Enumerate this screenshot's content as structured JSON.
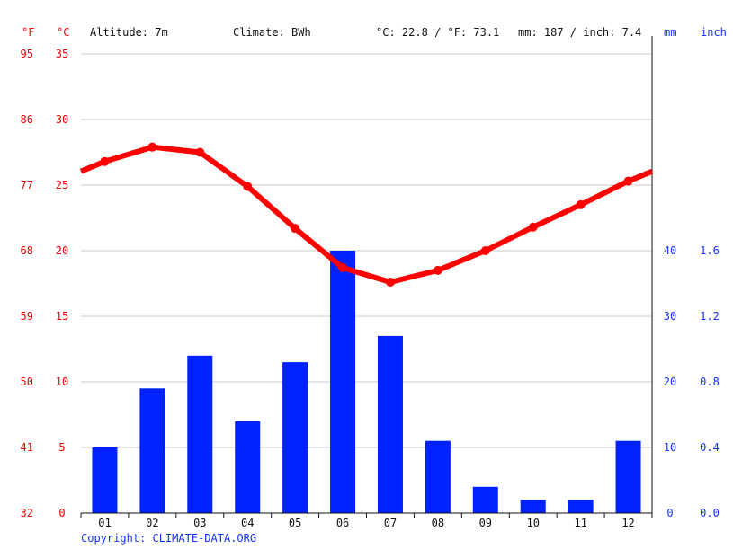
{
  "header": {
    "f_unit": "°F",
    "c_unit": "°C",
    "altitude": "Altitude: 7m",
    "climate": "Climate: BWh",
    "temp_avg": "°C: 22.8 / °F: 73.1",
    "precip_avg": "mm: 187 / inch: 7.4",
    "mm_unit": "mm",
    "inch_unit": "inch"
  },
  "footer": {
    "copyright": "Copyright: CLIMATE-DATA.ORG"
  },
  "colors": {
    "temperature": "#ff0000",
    "precipitation": "#0022ff",
    "grid": "#c8c8c8"
  },
  "chart_data": {
    "type": "bar+line",
    "categories": [
      "01",
      "02",
      "03",
      "04",
      "05",
      "06",
      "07",
      "08",
      "09",
      "10",
      "11",
      "12"
    ],
    "series": [
      {
        "type": "bar",
        "axis": "right",
        "unit": "mm",
        "values": [
          10,
          19,
          24,
          14,
          23,
          40,
          27,
          11,
          4,
          2,
          2,
          11
        ]
      },
      {
        "type": "line",
        "axis": "left",
        "unit": "°C",
        "values": [
          26.8,
          27.9,
          27.5,
          24.9,
          21.7,
          18.7,
          17.6,
          18.5,
          20.0,
          21.8,
          23.5,
          25.3
        ]
      }
    ],
    "left_axis_c": {
      "ticks": [
        0,
        5,
        10,
        15,
        20,
        25,
        30,
        35
      ],
      "ylim": [
        0,
        35
      ]
    },
    "left_axis_f": {
      "ticks": [
        "32",
        "41",
        "50",
        "59",
        "68",
        "77",
        "86",
        "95"
      ]
    },
    "right_axis_mm": {
      "ticks": [
        0,
        10,
        20,
        30,
        40
      ],
      "ylim": [
        0,
        70
      ]
    },
    "right_axis_inch": {
      "ticks": [
        "0.0",
        "0.4",
        "0.8",
        "1.2",
        "1.6"
      ]
    },
    "grid": true
  }
}
